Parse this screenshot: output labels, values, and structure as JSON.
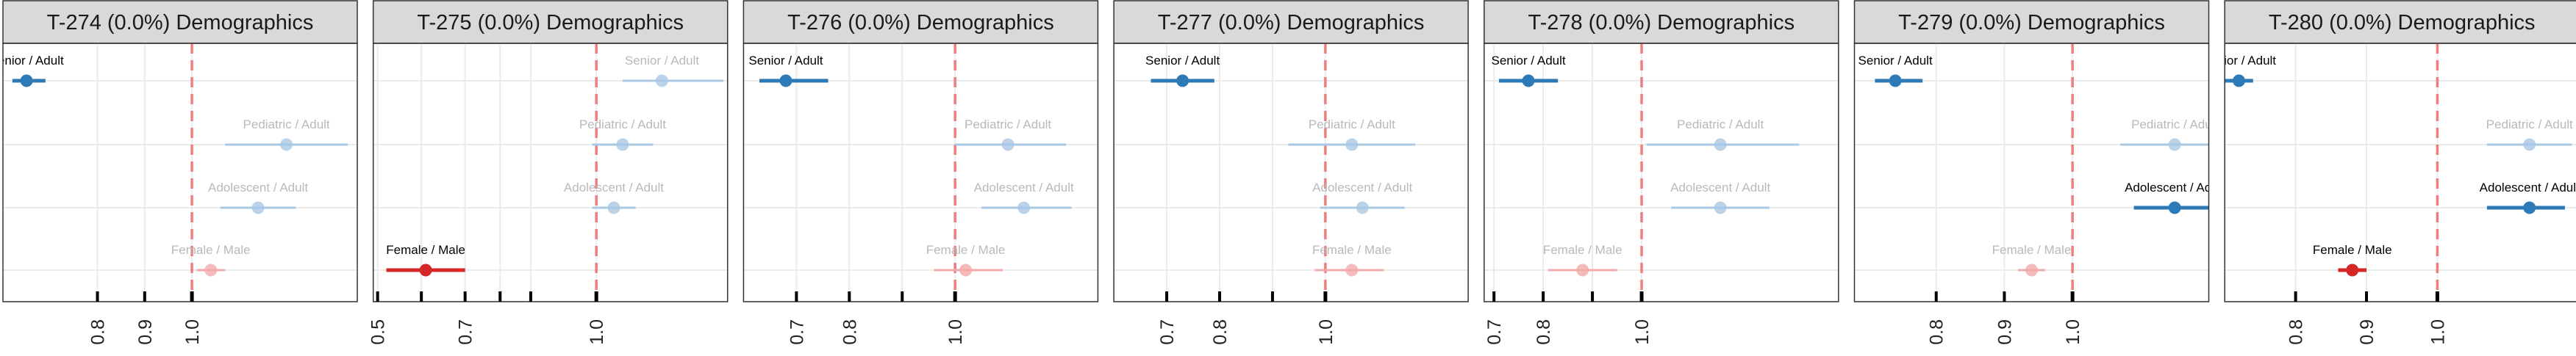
{
  "colors": {
    "ref_line": "#f07e7e",
    "strip_fill": "#d9d9d9",
    "strip_stroke": "#333333",
    "panel_border": "#333333",
    "grid": "#ebebeb",
    "axis_tick": "#000000",
    "blue": "#2e7ab6",
    "blue_light": "#a9c8e4",
    "red": "#d62728",
    "red_light": "#f2a9a9",
    "label_dark": "#000000",
    "label_light": "#b9b9b9"
  },
  "chart_data": [
    {
      "type": "forest",
      "title": "T-274 (0.0%) Demographics",
      "xlim": [
        0.6,
        1.35
      ],
      "xticks": [
        0.8,
        0.9,
        1.0
      ],
      "xtick_labels": [
        "0.8",
        "0.9",
        "1.0"
      ],
      "reference": 1.0,
      "rows": [
        {
          "label": "Senior / Adult",
          "estimate": 0.65,
          "lo": 0.62,
          "hi": 0.69,
          "color": "blue",
          "faded": false
        },
        {
          "label": "Pediatric / Adult",
          "estimate": 1.2,
          "lo": 1.07,
          "hi": 1.33,
          "color": "blue",
          "faded": true
        },
        {
          "label": "Adolescent / Adult",
          "estimate": 1.14,
          "lo": 1.06,
          "hi": 1.22,
          "color": "blue",
          "faded": true
        },
        {
          "label": "Female / Male",
          "estimate": 1.04,
          "lo": 1.01,
          "hi": 1.07,
          "color": "red",
          "faded": true
        }
      ]
    },
    {
      "type": "forest",
      "title": "T-275 (0.0%) Demographics",
      "xlim": [
        0.49,
        1.3
      ],
      "xticks": [
        0.5,
        0.6,
        0.7,
        0.78,
        0.85,
        1.0
      ],
      "xtick_labels": [
        "0.5",
        "",
        "0.7",
        "",
        "",
        "1.0"
      ],
      "reference": 1.0,
      "rows": [
        {
          "label": "Senior / Adult",
          "estimate": 1.15,
          "lo": 1.06,
          "hi": 1.29,
          "color": "blue",
          "faded": true
        },
        {
          "label": "Pediatric / Adult",
          "estimate": 1.06,
          "lo": 0.99,
          "hi": 1.13,
          "color": "blue",
          "faded": true
        },
        {
          "label": "Adolescent / Adult",
          "estimate": 1.04,
          "lo": 0.99,
          "hi": 1.09,
          "color": "blue",
          "faded": true
        },
        {
          "label": "Female / Male",
          "estimate": 0.61,
          "lo": 0.52,
          "hi": 0.7,
          "color": "red",
          "faded": false
        }
      ]
    },
    {
      "type": "forest",
      "title": "T-276 (0.0%) Demographics",
      "xlim": [
        0.6,
        1.27
      ],
      "xticks": [
        0.7,
        0.8,
        0.9,
        1.0
      ],
      "xtick_labels": [
        "0.7",
        "0.8",
        "",
        "1.0"
      ],
      "reference": 1.0,
      "rows": [
        {
          "label": "Senior / Adult",
          "estimate": 0.68,
          "lo": 0.63,
          "hi": 0.76,
          "color": "blue",
          "faded": false
        },
        {
          "label": "Pediatric / Adult",
          "estimate": 1.1,
          "lo": 1.0,
          "hi": 1.21,
          "color": "blue",
          "faded": true
        },
        {
          "label": "Adolescent / Adult",
          "estimate": 1.13,
          "lo": 1.05,
          "hi": 1.22,
          "color": "blue",
          "faded": true
        },
        {
          "label": "Female / Male",
          "estimate": 1.02,
          "lo": 0.96,
          "hi": 1.09,
          "color": "red",
          "faded": true
        }
      ]
    },
    {
      "type": "forest",
      "title": "T-277 (0.0%) Demographics",
      "xlim": [
        0.6,
        1.27
      ],
      "xticks": [
        0.7,
        0.8,
        0.9,
        1.0
      ],
      "xtick_labels": [
        "0.7",
        "0.8",
        "",
        "1.0"
      ],
      "reference": 1.0,
      "rows": [
        {
          "label": "Senior / Adult",
          "estimate": 0.73,
          "lo": 0.67,
          "hi": 0.79,
          "color": "blue",
          "faded": false
        },
        {
          "label": "Pediatric / Adult",
          "estimate": 1.05,
          "lo": 0.93,
          "hi": 1.17,
          "color": "blue",
          "faded": true
        },
        {
          "label": "Adolescent / Adult",
          "estimate": 1.07,
          "lo": 0.99,
          "hi": 1.15,
          "color": "blue",
          "faded": true
        },
        {
          "label": "Female / Male",
          "estimate": 1.05,
          "lo": 0.98,
          "hi": 1.11,
          "color": "red",
          "faded": true
        }
      ]
    },
    {
      "type": "forest",
      "title": "T-278 (0.0%) Demographics",
      "xlim": [
        0.68,
        1.4
      ],
      "xticks": [
        0.7,
        0.8,
        0.9,
        1.0
      ],
      "xtick_labels": [
        "0.7",
        "0.8",
        "",
        "1.0"
      ],
      "reference": 1.0,
      "rows": [
        {
          "label": "Senior / Adult",
          "estimate": 0.77,
          "lo": 0.71,
          "hi": 0.83,
          "color": "blue",
          "faded": false
        },
        {
          "label": "Pediatric / Adult",
          "estimate": 1.16,
          "lo": 1.01,
          "hi": 1.32,
          "color": "blue",
          "faded": true
        },
        {
          "label": "Adolescent / Adult",
          "estimate": 1.16,
          "lo": 1.06,
          "hi": 1.26,
          "color": "blue",
          "faded": true
        },
        {
          "label": "Female / Male",
          "estimate": 0.88,
          "lo": 0.81,
          "hi": 0.95,
          "color": "red",
          "faded": true
        }
      ]
    },
    {
      "type": "forest",
      "title": "T-279 (0.0%) Demographics",
      "xlim": [
        0.68,
        1.2
      ],
      "xticks": [
        0.8,
        0.9,
        1.0
      ],
      "xtick_labels": [
        "0.8",
        "0.9",
        "1.0"
      ],
      "reference": 1.0,
      "rows": [
        {
          "label": "Senior / Adult",
          "estimate": 0.74,
          "lo": 0.71,
          "hi": 0.78,
          "color": "blue",
          "faded": false
        },
        {
          "label": "Pediatric / Adult",
          "estimate": 1.15,
          "lo": 1.07,
          "hi": 1.23,
          "color": "blue",
          "faded": true
        },
        {
          "label": "Adolescent / Adult",
          "estimate": 1.15,
          "lo": 1.09,
          "hi": 1.22,
          "color": "blue",
          "faded": false
        },
        {
          "label": "Female / Male",
          "estimate": 0.94,
          "lo": 0.92,
          "hi": 0.96,
          "color": "red",
          "faded": true
        }
      ]
    },
    {
      "type": "forest",
      "title": "T-280 (0.0%) Demographics",
      "xlim": [
        0.7,
        1.2
      ],
      "xticks": [
        0.8,
        0.9,
        1.0
      ],
      "xtick_labels": [
        "0.8",
        "0.9",
        "1.0"
      ],
      "reference": 1.0,
      "rows": [
        {
          "label": "Senior / Adult",
          "estimate": 0.72,
          "lo": 0.7,
          "hi": 0.74,
          "color": "blue",
          "faded": false
        },
        {
          "label": "Pediatric / Adult",
          "estimate": 1.13,
          "lo": 1.07,
          "hi": 1.19,
          "color": "blue",
          "faded": true
        },
        {
          "label": "Adolescent / Adult",
          "estimate": 1.13,
          "lo": 1.07,
          "hi": 1.18,
          "color": "blue",
          "faded": false
        },
        {
          "label": "Female / Male",
          "estimate": 0.88,
          "lo": 0.86,
          "hi": 0.9,
          "color": "red",
          "faded": false
        }
      ]
    }
  ]
}
